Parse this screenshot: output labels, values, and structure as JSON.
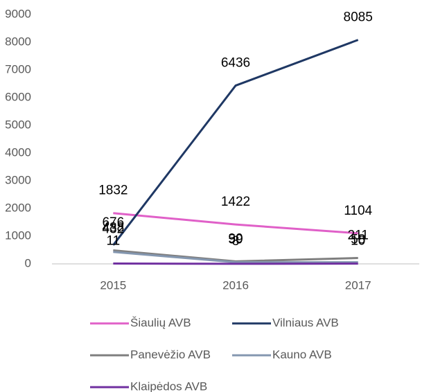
{
  "chart_data": {
    "type": "line",
    "categories": [
      "2015",
      "2016",
      "2017"
    ],
    "series": [
      {
        "name": "Šiaulių AVB",
        "color": "#e060c8",
        "values": [
          1832,
          1422,
          1104
        ]
      },
      {
        "name": "Vilniaus AVB",
        "color": "#1f3864",
        "values": [
          676,
          6436,
          8085
        ]
      },
      {
        "name": "Panevėžio AVB",
        "color": "#7f7f7f",
        "values": [
          488,
          90,
          211
        ]
      },
      {
        "name": "Kauno AVB",
        "color": "#8497b0",
        "values": [
          432,
          59,
          58
        ]
      },
      {
        "name": "Klaipėdos AVB",
        "color": "#7030a0",
        "values": [
          11,
          3,
          10
        ]
      }
    ],
    "ylim": [
      0,
      9000
    ],
    "yticks": [
      0,
      1000,
      2000,
      3000,
      4000,
      5000,
      6000,
      7000,
      8000,
      9000
    ],
    "grid": false,
    "legend": "bottom"
  }
}
